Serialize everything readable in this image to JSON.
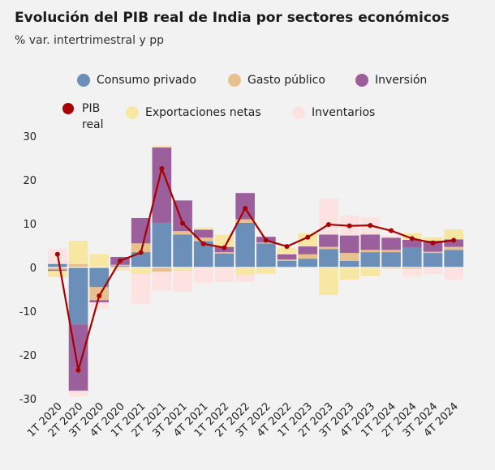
{
  "header": {
    "title": "Evolución del PIB real de India por sectores económicos",
    "subtitle": "% var. intertrimestral y pp"
  },
  "chart_data": {
    "type": "bar",
    "stacked": true,
    "title": "Evolución del PIB real de India por sectores económicos",
    "subtitle": "% var. intertrimestral y pp",
    "ylim": [
      -30,
      30
    ],
    "yticks": [
      30,
      20,
      10,
      0,
      -10,
      -20,
      -30
    ],
    "ytick_labels": [
      "30",
      "20",
      "10",
      "0",
      "-10",
      "-20",
      "-30"
    ],
    "grid": false,
    "legend_position": "top",
    "categories": [
      "1T 2020",
      "2T 2020",
      "3T 2020",
      "4T 2020",
      "1T 2021",
      "2T 2021",
      "3T 2021",
      "4T 2021",
      "1T 2022",
      "2T 2022",
      "3T 2022",
      "4T 2022",
      "1T 2023",
      "2T 2023",
      "3T 2023",
      "4T 2023",
      "1T 2024",
      "2T 2024",
      "3T 2024",
      "4T 2024"
    ],
    "series": [
      {
        "name": "Consumo privado",
        "color": "#6b8fb8",
        "values": [
          0.8,
          -13,
          -4.5,
          0.3,
          3.5,
          10.2,
          7.5,
          6,
          3.2,
          10.2,
          5.5,
          1.5,
          2,
          4.2,
          1.5,
          3.5,
          3.5,
          4.5,
          3.3,
          4
        ]
      },
      {
        "name": "Gasto público",
        "color": "#e8c08e",
        "values": [
          -0.5,
          0.8,
          -3,
          0.3,
          2,
          -1,
          0.8,
          0.8,
          0.3,
          0.8,
          0.2,
          0.3,
          1,
          0.5,
          1.8,
          0.5,
          0.5,
          -0.3,
          0.3,
          0.7
        ]
      },
      {
        "name": "Inversión",
        "color": "#9b5f9c",
        "values": [
          -0.3,
          -15.2,
          -0.5,
          1.8,
          5.8,
          17.2,
          7,
          1.8,
          1.2,
          6,
          1.3,
          1.2,
          1.8,
          2.8,
          4,
          3.5,
          2.8,
          1.8,
          2.5,
          1.7
        ]
      },
      {
        "name": "Exportaciones netas",
        "color": "#f7e7a3",
        "values": [
          -1.4,
          5.3,
          3,
          -0.5,
          -1.5,
          0.4,
          -0.8,
          0.5,
          2.8,
          -1.8,
          -1.3,
          1.5,
          3,
          -6.3,
          -2.8,
          -2,
          -0.4,
          1.5,
          0.8,
          2.3
        ]
      },
      {
        "name": "Inventarios",
        "color": "#fde2e2",
        "values": [
          3.5,
          -1.3,
          -1.5,
          -0.3,
          -6.8,
          -4.3,
          -4.8,
          -3.5,
          -3.3,
          -1.5,
          -0.3,
          0,
          0,
          8.3,
          4.5,
          4,
          0.5,
          -1.8,
          -1.5,
          -2.8
        ]
      }
    ],
    "line_series": {
      "name": "PIB real",
      "color": "#a80000",
      "values": [
        3,
        -23.5,
        -6.5,
        1.5,
        3.4,
        22.6,
        10.1,
        5.4,
        4.5,
        13.5,
        6.2,
        4.8,
        6.9,
        9.8,
        9.5,
        9.6,
        8.4,
        6.6,
        5.6,
        6.2
      ]
    }
  }
}
